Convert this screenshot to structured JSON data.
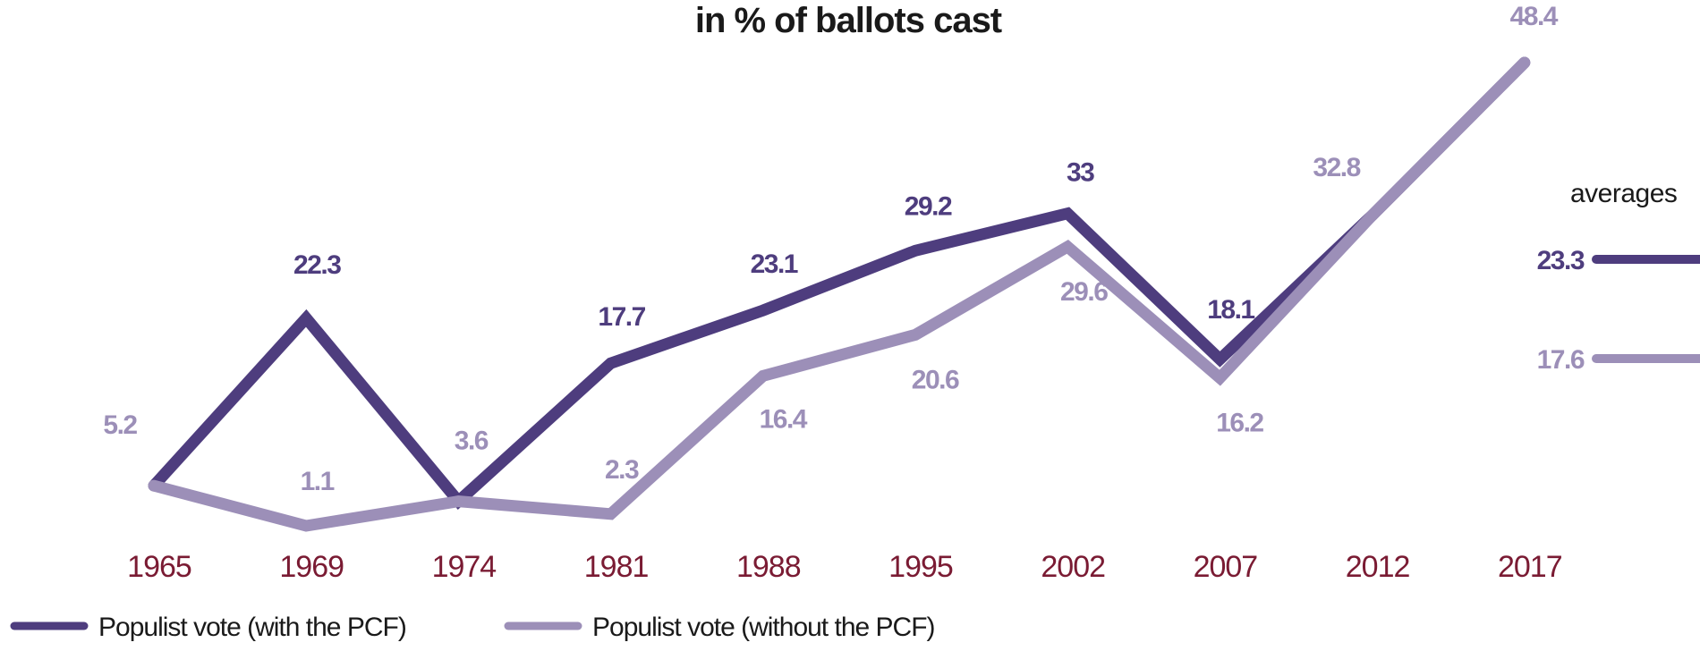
{
  "chart_data": {
    "type": "line",
    "title": "in % of ballots cast",
    "xlabel": "",
    "ylabel": "",
    "ylim": [
      0,
      50
    ],
    "grid": false,
    "legend_placement": "bottom-left",
    "categories": [
      "1965",
      "1969",
      "1974",
      "1981",
      "1988",
      "1995",
      "2002",
      "2007",
      "2012",
      "2017"
    ],
    "series": [
      {
        "name": "Populist vote (with the PCF)",
        "color": "#4e3d7e",
        "values": [
          5.2,
          22.3,
          3.6,
          17.7,
          23.1,
          29.2,
          33,
          18.1,
          32.8,
          48.4
        ],
        "data_labels": [
          "",
          "22.3",
          "",
          "17.7",
          "23.1",
          "29.2",
          "33",
          "18.1",
          "",
          ""
        ]
      },
      {
        "name": "Populist vote (without the PCF)",
        "color": "#9c8fb8",
        "values": [
          5.2,
          1.1,
          3.6,
          2.3,
          16.4,
          20.6,
          29.6,
          16.2,
          32.8,
          48.4
        ],
        "data_labels": [
          "5.2",
          "1.1",
          "3.6",
          "2.3",
          "16.4",
          "20.6",
          "29.6",
          "16.2",
          "32.8",
          "48.4"
        ]
      }
    ],
    "averages": {
      "title": "averages",
      "items": [
        {
          "series": "Populist vote (with the PCF)",
          "value": 23.3,
          "label": "23.3"
        },
        {
          "series": "Populist vote (without the PCF)",
          "value": 17.6,
          "label": "17.6"
        }
      ]
    },
    "tick_color": "#7a1b33"
  }
}
